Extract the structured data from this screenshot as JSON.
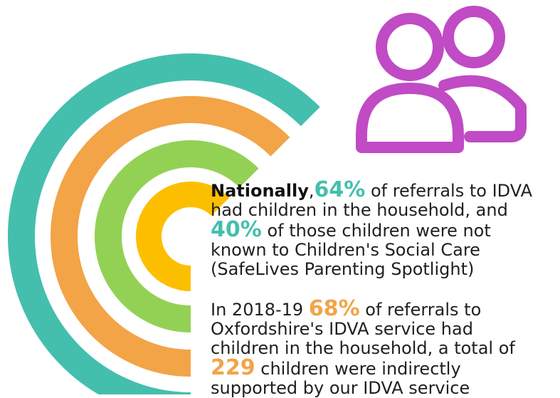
{
  "colors": {
    "teal": "#44bfad",
    "orange": "#f2a447",
    "green": "#93d155",
    "yellow": "#fcbf00",
    "purple": "#c04bc5"
  },
  "icons": {
    "people": "people-icon"
  },
  "national": {
    "label": "Nationally",
    "separator": ",",
    "percent_children": "64%",
    "line1_rest": " of referrals to IDVA",
    "line2": "had children in the household, and",
    "percent_unknown": "40%",
    "line3_rest": " of those children were not",
    "line4": "known to Children's Social Care",
    "line5": "(SafeLives Parenting Spotlight)"
  },
  "local": {
    "year_prefix": "In 2018-19 ",
    "percent_children": "68%",
    "line1_rest": " of referrals to",
    "line2": "Oxfordshire's IDVA service had",
    "line3": "children in the household, a total of",
    "children_count": "229",
    "line4_rest": " children were indirectly",
    "line5": "supported by our IDVA service"
  }
}
